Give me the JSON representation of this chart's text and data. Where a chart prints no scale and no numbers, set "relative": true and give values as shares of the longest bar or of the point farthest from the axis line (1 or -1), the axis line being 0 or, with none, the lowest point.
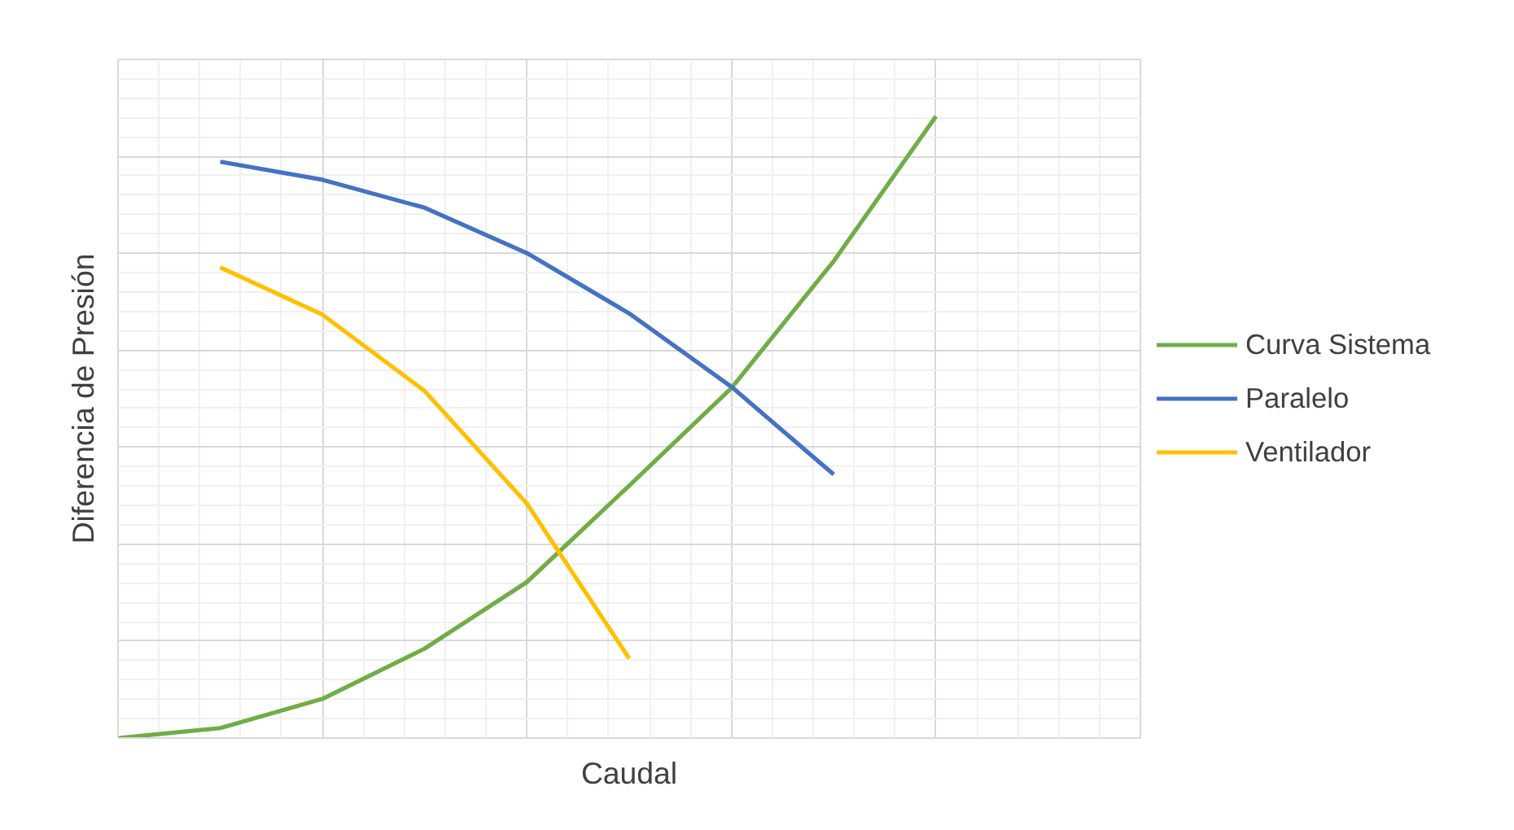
{
  "chart_data": {
    "type": "line",
    "relative": true,
    "xlabel": "Caudal",
    "ylabel": "Diferencia de Presión",
    "categories": [
      null,
      null,
      null,
      null,
      null,
      null,
      null,
      null,
      null,
      null,
      null
    ],
    "series": [
      {
        "name": "Curva Sistema",
        "color": "#70ad47",
        "values": [
          0,
          0.016,
          0.063,
          0.144,
          0.251,
          0.406,
          0.563,
          0.767,
          1,
          null,
          null
        ]
      },
      {
        "name": "Paralelo",
        "color": "#4472c4",
        "values": [
          null,
          0.927,
          0.898,
          0.853,
          0.78,
          0.683,
          0.565,
          0.424,
          null,
          null,
          null
        ]
      },
      {
        "name": "Ventilador",
        "color": "#ffc000",
        "values": [
          null,
          0.757,
          0.681,
          0.558,
          0.377,
          0.128,
          null,
          null,
          null,
          null,
          null
        ]
      }
    ],
    "grid": true,
    "legend": "right",
    "marker": "none",
    "line_style": "solid"
  }
}
